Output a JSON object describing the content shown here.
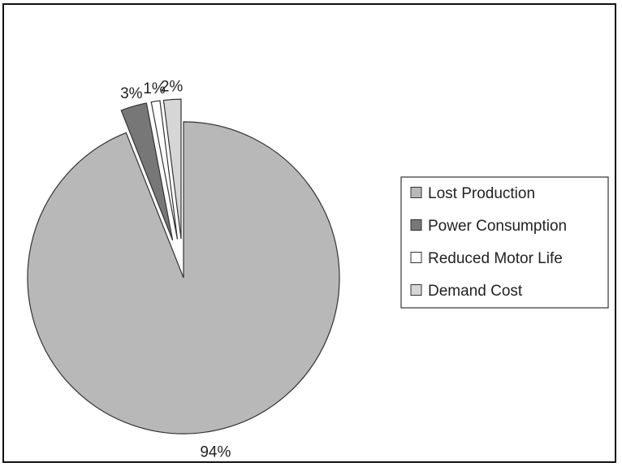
{
  "chart_data": {
    "type": "pie",
    "title": "",
    "legend_position": "right",
    "slices": [
      {
        "label": "Lost Production",
        "value": 94,
        "value_label": "94%",
        "color": "#b8b8b8",
        "exploded": false
      },
      {
        "label": "Power Consumption",
        "value": 3,
        "value_label": "3%",
        "color": "#777777",
        "exploded": true
      },
      {
        "label": "Reduced Motor Life",
        "value": 1,
        "value_label": "1%",
        "color": "#ffffff",
        "exploded": true
      },
      {
        "label": "Demand Cost",
        "value": 2,
        "value_label": "2%",
        "color": "#d6d6d6",
        "exploded": true
      }
    ]
  }
}
